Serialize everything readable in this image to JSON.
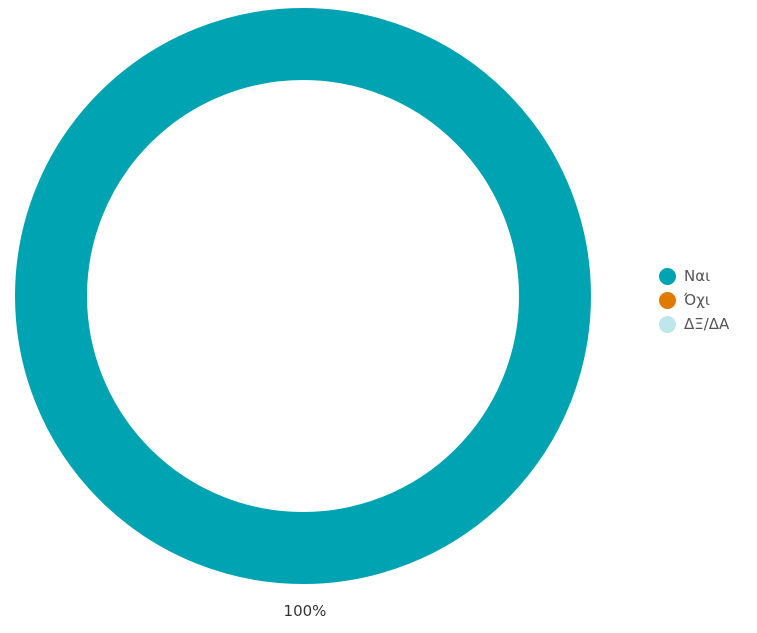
{
  "chart_data": {
    "type": "pie",
    "subtype": "donut",
    "categories": [
      "Ναι",
      "Όχι",
      "ΔΞ/ΔΑ"
    ],
    "values": [
      100,
      0,
      0
    ],
    "colors": [
      "#00A3B1",
      "#E07B00",
      "#BDE7EA"
    ],
    "data_labels": [
      "100%"
    ],
    "legend_position": "right"
  },
  "legend": {
    "items": [
      {
        "label": "Ναι",
        "color": "#00A3B1",
        "icon": "dot-icon"
      },
      {
        "label": "Όχι",
        "color": "#E07B00",
        "icon": "dot-icon"
      },
      {
        "label": "ΔΞ/ΔΑ",
        "color": "#BDE7EA",
        "icon": "dot-icon"
      }
    ]
  }
}
